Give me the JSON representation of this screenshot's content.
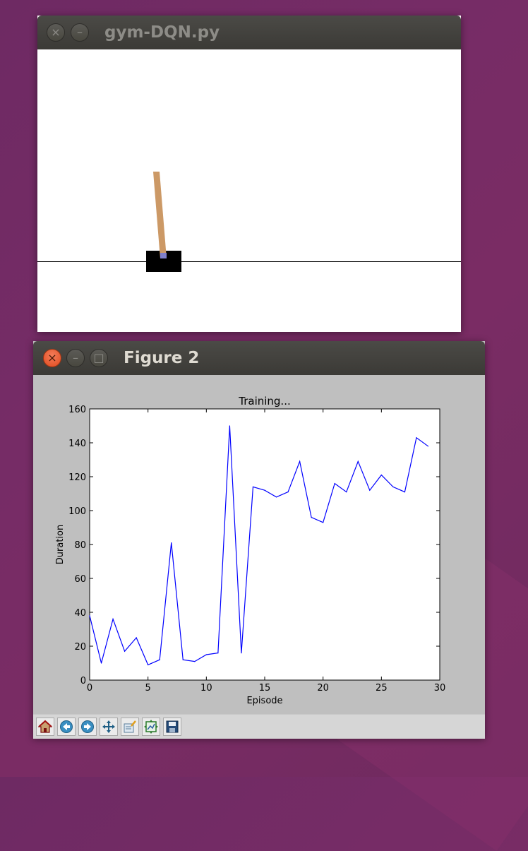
{
  "window1": {
    "title": "gym-DQN.py",
    "buttons": {
      "close": "×",
      "minimize": "–"
    },
    "colors": {
      "pole": "#cc9966",
      "cart": "#000000",
      "axle": "#8080cc"
    }
  },
  "window2": {
    "title": "Figure 2",
    "buttons": {
      "close": "×",
      "minimize": "–",
      "maximize": "□"
    },
    "toolbar": [
      "home-icon",
      "back-icon",
      "forward-icon",
      "pan-icon",
      "configure-subplots-icon",
      "zoom-icon",
      "save-icon"
    ]
  },
  "chart_data": {
    "type": "line",
    "title": "Training...",
    "xlabel": "Episode",
    "ylabel": "Duration",
    "xlim": [
      0,
      30
    ],
    "ylim": [
      0,
      160
    ],
    "xticks": [
      0,
      5,
      10,
      15,
      20,
      25,
      30
    ],
    "yticks": [
      0,
      20,
      40,
      60,
      80,
      100,
      120,
      140,
      160
    ],
    "grid": false,
    "color": "#0000ff",
    "x": [
      0,
      1,
      2,
      3,
      4,
      5,
      6,
      7,
      8,
      9,
      10,
      11,
      12,
      13,
      14,
      15,
      16,
      17,
      18,
      19,
      20,
      21,
      22,
      23,
      24,
      25,
      26,
      27,
      28,
      29
    ],
    "y": [
      38,
      10,
      36,
      17,
      25,
      9,
      12,
      81,
      12,
      11,
      15,
      16,
      150,
      16,
      114,
      112,
      108,
      111,
      129,
      96,
      93,
      116,
      111,
      129,
      112,
      121,
      114,
      111,
      143,
      138
    ]
  }
}
